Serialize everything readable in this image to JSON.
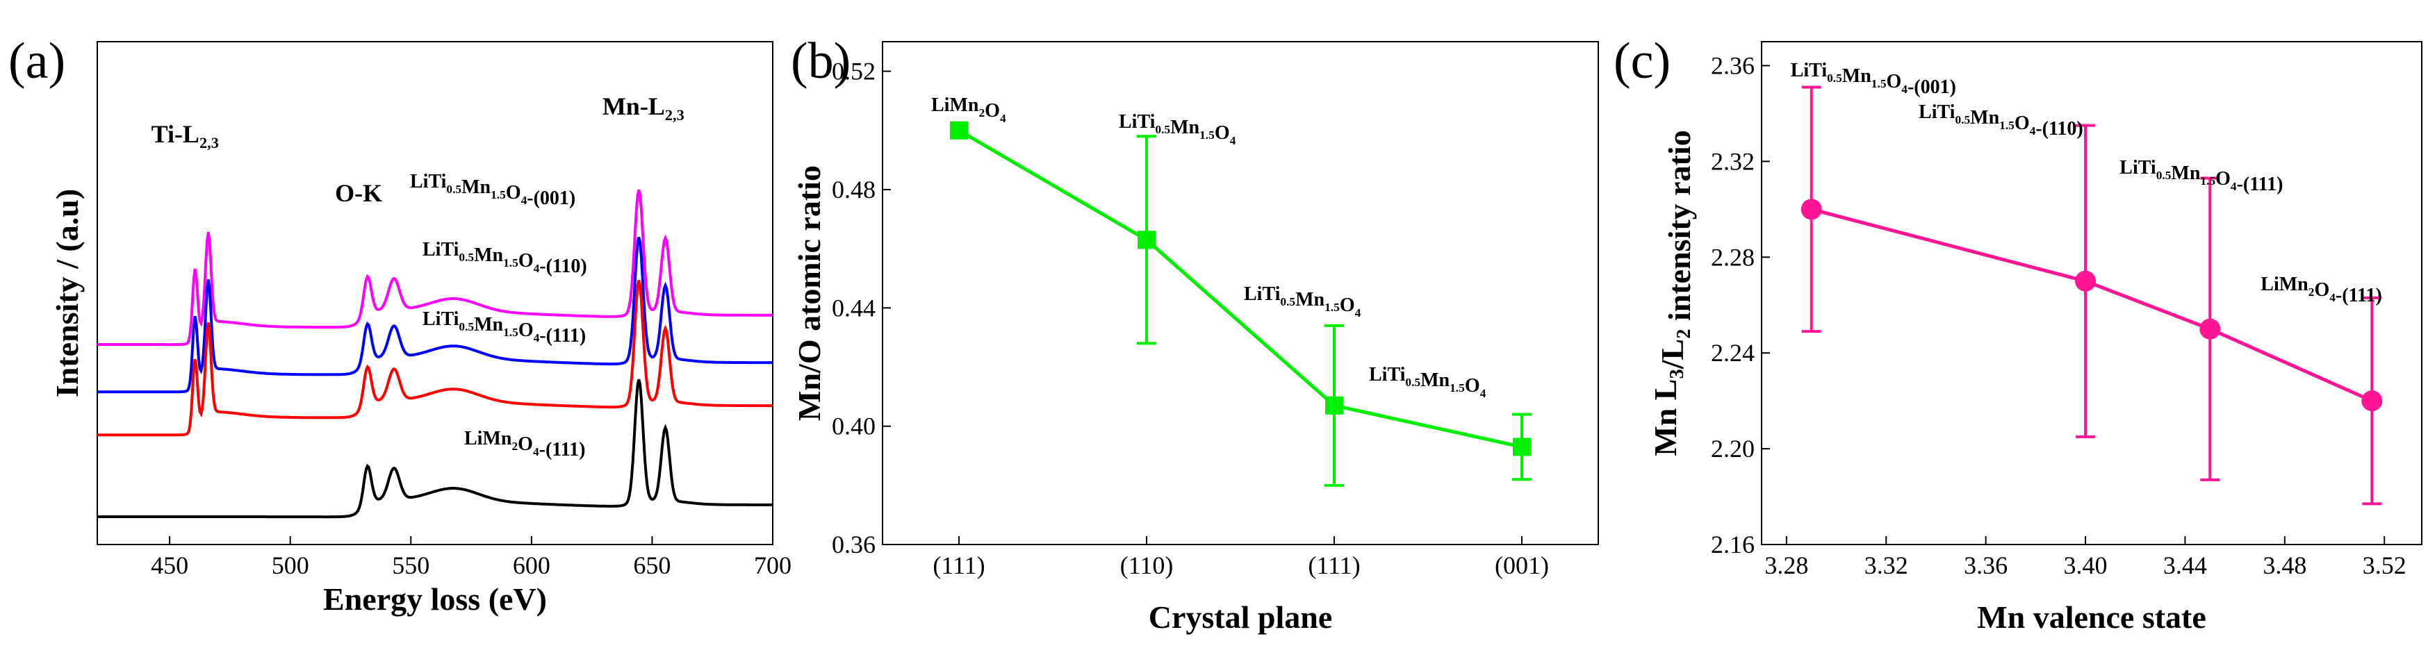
{
  "chart_data": [
    {
      "panel": "(a)",
      "type": "line",
      "xlabel": "Energy loss (eV)",
      "ylabel": "Intensity / (a.u)",
      "xlim": [
        420,
        700
      ],
      "xticks": [
        450,
        500,
        550,
        600,
        650,
        700
      ],
      "peak_labels": [
        {
          "base": "Ti-L",
          "sub": "2,3",
          "x": 465
        },
        {
          "base": "O-K",
          "sub": "",
          "x": 537
        },
        {
          "base": "Mn-L",
          "sub": "2,3",
          "x": 655
        }
      ],
      "series": [
        {
          "label": {
            "parts": [
              [
                "LiTi",
                ""
              ],
              [
                "0.5",
                "sub"
              ],
              [
                "Mn",
                ""
              ],
              [
                "1.5",
                "sub"
              ],
              [
                "O",
                ""
              ],
              [
                "4",
                "sub"
              ],
              [
                "-(001)",
                ""
              ]
            ]
          },
          "color": "#ff00ff",
          "offset": 4.0
        },
        {
          "label": {
            "parts": [
              [
                "LiTi",
                ""
              ],
              [
                "0.5",
                "sub"
              ],
              [
                "Mn",
                ""
              ],
              [
                "1.5",
                "sub"
              ],
              [
                "O",
                ""
              ],
              [
                "4",
                "sub"
              ],
              [
                "-(110)",
                ""
              ]
            ]
          },
          "color": "#0000ff",
          "offset": 2.9
        },
        {
          "label": {
            "parts": [
              [
                "LiTi",
                ""
              ],
              [
                "0.5",
                "sub"
              ],
              [
                "Mn",
                ""
              ],
              [
                "1.5",
                "sub"
              ],
              [
                "O",
                ""
              ],
              [
                "4",
                "sub"
              ],
              [
                "-(111)",
                ""
              ]
            ]
          },
          "color": "#ff0000",
          "offset": 1.9
        },
        {
          "label": {
            "parts": [
              [
                "LiMn",
                ""
              ],
              [
                "2",
                "sub"
              ],
              [
                "O",
                ""
              ],
              [
                "4",
                "sub"
              ],
              [
                "-(111)",
                ""
              ]
            ]
          },
          "color": "#000000",
          "offset": 0.0
        }
      ]
    },
    {
      "panel": "(b)",
      "type": "line",
      "xlabel": "Crystal plane",
      "ylabel": "Mn/O atomic ratio",
      "categories": [
        "(111)",
        "(110)",
        "(111)",
        "(001)"
      ],
      "ylim": [
        0.36,
        0.53
      ],
      "yticks": [
        0.36,
        0.4,
        0.44,
        0.48,
        0.52
      ],
      "color": "#00ee00",
      "values": [
        0.5,
        0.463,
        0.407,
        0.393
      ],
      "errors": [
        0.0,
        0.035,
        0.027,
        0.011
      ],
      "point_labels": [
        {
          "parts": [
            [
              "LiMn",
              ""
            ],
            [
              "2",
              "sub"
            ],
            [
              "O",
              ""
            ],
            [
              "4",
              "sub"
            ]
          ]
        },
        {
          "parts": [
            [
              "LiTi",
              ""
            ],
            [
              "0.5",
              "sub"
            ],
            [
              "Mn",
              ""
            ],
            [
              "1.5",
              "sub"
            ],
            [
              "O",
              ""
            ],
            [
              "4",
              "sub"
            ]
          ]
        },
        {
          "parts": [
            [
              "LiTi",
              ""
            ],
            [
              "0.5",
              "sub"
            ],
            [
              "Mn",
              ""
            ],
            [
              "1.5",
              "sub"
            ],
            [
              "O",
              ""
            ],
            [
              "4",
              "sub"
            ]
          ]
        },
        {
          "parts": [
            [
              "LiTi",
              ""
            ],
            [
              "0.5",
              "sub"
            ],
            [
              "Mn",
              ""
            ],
            [
              "1.5",
              "sub"
            ],
            [
              "O",
              ""
            ],
            [
              "4",
              "sub"
            ]
          ]
        }
      ]
    },
    {
      "panel": "(c)",
      "type": "line",
      "xlabel": "Mn valence state",
      "ylabel": {
        "parts": [
          [
            "Mn L",
            ""
          ],
          [
            "3",
            "sub"
          ],
          [
            "/L",
            ""
          ],
          [
            "2",
            "sub"
          ],
          [
            " intensity ratio",
            ""
          ]
        ]
      },
      "xlim": [
        3.27,
        3.535
      ],
      "xticks": [
        3.28,
        3.32,
        3.36,
        3.4,
        3.44,
        3.48,
        3.52
      ],
      "ylim": [
        2.16,
        2.37
      ],
      "yticks": [
        2.16,
        2.2,
        2.24,
        2.28,
        2.32,
        2.36
      ],
      "color": "#ff1493",
      "x": [
        3.29,
        3.4,
        3.45,
        3.515
      ],
      "y": [
        2.3,
        2.27,
        2.25,
        2.22
      ],
      "errors": [
        0.051,
        0.065,
        0.063,
        0.043
      ],
      "point_labels": [
        {
          "parts": [
            [
              "LiTi",
              ""
            ],
            [
              "0.5",
              "sub"
            ],
            [
              "Mn",
              ""
            ],
            [
              "1.5",
              "sub"
            ],
            [
              "O",
              ""
            ],
            [
              "4",
              "sub"
            ],
            [
              "-(001)",
              ""
            ]
          ]
        },
        {
          "parts": [
            [
              "LiTi",
              ""
            ],
            [
              "0.5",
              "sub"
            ],
            [
              "Mn",
              ""
            ],
            [
              "1.5",
              "sub"
            ],
            [
              "O",
              ""
            ],
            [
              "4",
              "sub"
            ],
            [
              "-(110)",
              ""
            ]
          ]
        },
        {
          "parts": [
            [
              "LiTi",
              ""
            ],
            [
              "0.5",
              "sub"
            ],
            [
              "Mn",
              ""
            ],
            [
              "1.5",
              "sub"
            ],
            [
              "O",
              ""
            ],
            [
              "4",
              "sub"
            ],
            [
              "-(111)",
              ""
            ]
          ]
        },
        {
          "parts": [
            [
              "LiMn",
              ""
            ],
            [
              "2",
              "sub"
            ],
            [
              "O",
              ""
            ],
            [
              "4",
              "sub"
            ],
            [
              "-(111)",
              ""
            ]
          ]
        }
      ]
    }
  ]
}
